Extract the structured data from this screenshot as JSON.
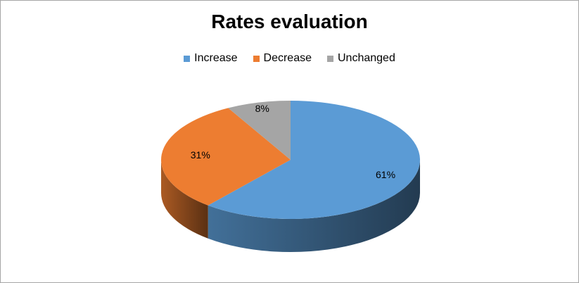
{
  "chart_data": {
    "type": "pie",
    "title": "Rates evaluation",
    "legend_position": "top",
    "three_d": true,
    "categories": [
      "Increase",
      "Decrease",
      "Unchanged"
    ],
    "values": [
      61,
      31,
      8
    ],
    "labels": [
      "61%",
      "31%",
      "8%"
    ],
    "colors": [
      "#5b9bd5",
      "#ed7d31",
      "#a5a5a5"
    ]
  }
}
